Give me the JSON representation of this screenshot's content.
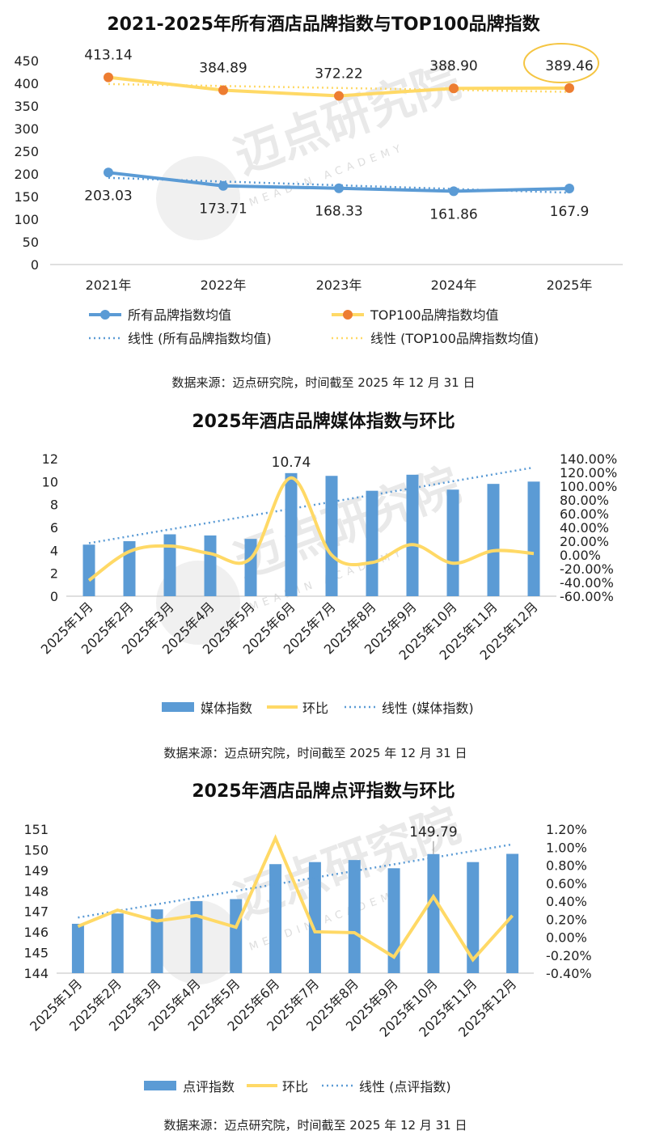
{
  "watermark": {
    "cn": "迈点研究院",
    "en": "MEADIN ACADEMY"
  },
  "colors": {
    "blue": "#5b9bd5",
    "yellow": "#ffd966",
    "orange": "#ed7d31",
    "trend_blue": "#5b9bd5",
    "trend_yellow": "#ffd966",
    "highlight": "#f5c542"
  },
  "chart_data": [
    {
      "type": "line",
      "title": "2021-2025年所有酒店品牌指数与TOP100品牌指数",
      "categories": [
        "2021年",
        "2022年",
        "2023年",
        "2024年",
        "2025年"
      ],
      "series": [
        {
          "name": "所有品牌指数均值",
          "values": [
            203.03,
            173.71,
            168.33,
            161.86,
            167.9
          ],
          "labels": [
            "203.03",
            "173.71",
            "168.33",
            "161.86",
            "167.9"
          ]
        },
        {
          "name": "TOP100品牌指数均值",
          "values": [
            413.14,
            384.89,
            372.22,
            388.9,
            389.46
          ],
          "labels": [
            "413.14",
            "384.89",
            "372.22",
            "388.90",
            "389.46"
          ]
        }
      ],
      "trendlines": [
        "线性 (所有品牌指数均值)",
        "线性 (TOP100品牌指数均值)"
      ],
      "yticks": [
        "0",
        "50",
        "100",
        "150",
        "200",
        "250",
        "300",
        "350",
        "400",
        "450"
      ],
      "ylim": [
        0,
        450
      ],
      "highlighted_label": "389.46",
      "grid": false,
      "legend": "bottom",
      "source": "数据来源：迈点研究院，时间截至 2025 年 12 月 31 日"
    },
    {
      "type": "bar",
      "title": "2025年酒店品牌媒体指数与环比",
      "categories": [
        "2025年1月",
        "2025年2月",
        "2025年3月",
        "2025年4月",
        "2025年5月",
        "2025年6月",
        "2025年7月",
        "2025年8月",
        "2025年9月",
        "2025年10月",
        "2025年11月",
        "2025年12月"
      ],
      "bar_series": {
        "name": "媒体指数",
        "values": [
          4.5,
          4.8,
          5.4,
          5.3,
          5.0,
          10.74,
          10.5,
          9.2,
          10.6,
          9.3,
          9.8,
          10.0
        ]
      },
      "line_series": {
        "name": "环比",
        "values": [
          -37,
          5,
          13,
          2,
          -5,
          112,
          0,
          -11,
          15,
          -12,
          6,
          2
        ]
      },
      "trendline": "线性 (媒体指数)",
      "peak_label": "10.74",
      "peak_index": 5,
      "yticks_left": [
        "0",
        "2",
        "4",
        "6",
        "8",
        "10",
        "12"
      ],
      "ylim_left": [
        0,
        12
      ],
      "yticks_right": [
        "-60.00%",
        "-40.00%",
        "-20.00%",
        "0.00%",
        "20.00%",
        "40.00%",
        "60.00%",
        "80.00%",
        "100.00%",
        "120.00%",
        "140.00%"
      ],
      "ylim_right": [
        -60,
        140
      ],
      "grid": false,
      "legend": "bottom",
      "source": "数据来源：迈点研究院，时间截至 2025 年 12 月 31 日"
    },
    {
      "type": "bar",
      "title": "2025年酒店品牌点评指数与环比",
      "categories": [
        "2025年1月",
        "2025年2月",
        "2025年3月",
        "2025年4月",
        "2025年5月",
        "2025年6月",
        "2025年7月",
        "2025年8月",
        "2025年9月",
        "2025年10月",
        "2025年11月",
        "2025年12月"
      ],
      "bar_series": {
        "name": "点评指数",
        "values": [
          146.4,
          146.9,
          147.1,
          147.5,
          147.6,
          149.3,
          149.4,
          149.5,
          149.1,
          149.79,
          149.4,
          149.8
        ]
      },
      "line_series": {
        "name": "环比",
        "values": [
          0.12,
          0.3,
          0.18,
          0.24,
          0.11,
          1.1,
          0.06,
          0.05,
          -0.22,
          0.45,
          -0.25,
          0.24
        ]
      },
      "trendline": "线性 (点评指数)",
      "peak_label": "149.79",
      "peak_index": 9,
      "yticks_left": [
        "144",
        "145",
        "146",
        "147",
        "148",
        "149",
        "150",
        "151"
      ],
      "ylim_left": [
        144,
        151
      ],
      "yticks_right": [
        "-0.40%",
        "-0.20%",
        "0.00%",
        "0.20%",
        "0.40%",
        "0.60%",
        "0.80%",
        "1.00%",
        "1.20%"
      ],
      "ylim_right": [
        -0.4,
        1.2
      ],
      "grid": false,
      "legend": "bottom",
      "source": "数据来源：迈点研究院，时间截至 2025 年 12 月 31 日"
    }
  ]
}
